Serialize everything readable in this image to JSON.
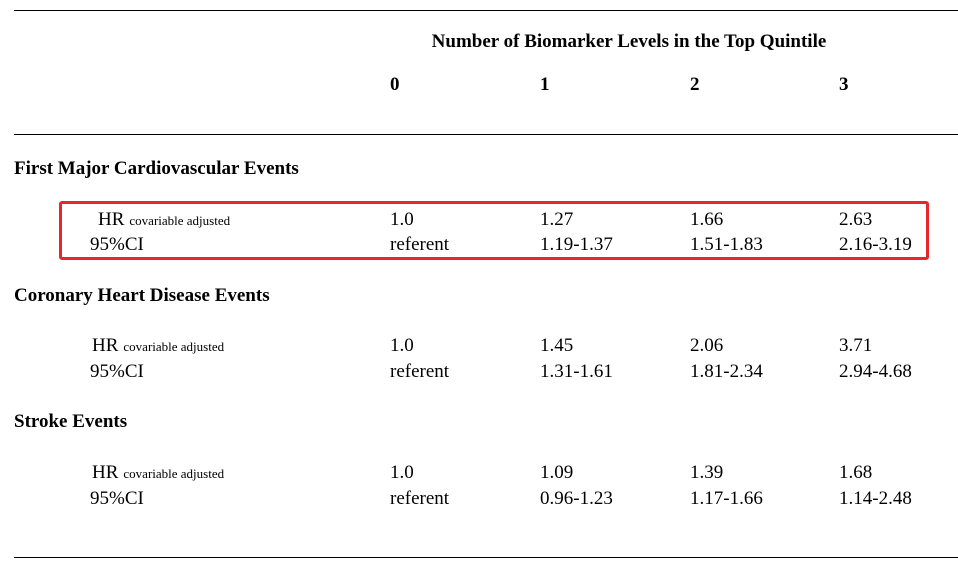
{
  "header": {
    "title": "Number of Biomarker Levels in the Top Quintile",
    "columns": [
      "0",
      "1",
      "2",
      "3"
    ]
  },
  "sections": [
    {
      "title": "First Major Cardiovascular Events",
      "hr_label": "HR",
      "hr_sub": "covariable adjusted",
      "ci_label": "95%CI",
      "hr": [
        "1.0",
        "1.27",
        "1.66",
        "2.63"
      ],
      "ci": [
        "referent",
        "1.19-1.37",
        "1.51-1.83",
        "2.16-3.19"
      ],
      "highlighted": true
    },
    {
      "title": "Coronary Heart Disease Events",
      "hr_label": "HR",
      "hr_sub": "covariable adjusted",
      "ci_label": "95%CI",
      "hr": [
        "1.0",
        "1.45",
        "2.06",
        "3.71"
      ],
      "ci": [
        "referent",
        "1.31-1.61",
        "1.81-2.34",
        "2.94-4.68"
      ],
      "highlighted": false
    },
    {
      "title": "Stroke Events",
      "hr_label": "HR",
      "hr_sub": "covariable adjusted",
      "ci_label": "95%CI",
      "hr": [
        "1.0",
        "1.09",
        "1.39",
        "1.68"
      ],
      "ci": [
        "referent",
        "0.96-1.23",
        "1.17-1.66",
        "1.14-2.48"
      ],
      "highlighted": false
    }
  ],
  "colors": {
    "highlight_border": "#e8262b",
    "text": "#000000",
    "rule": "#000000"
  }
}
